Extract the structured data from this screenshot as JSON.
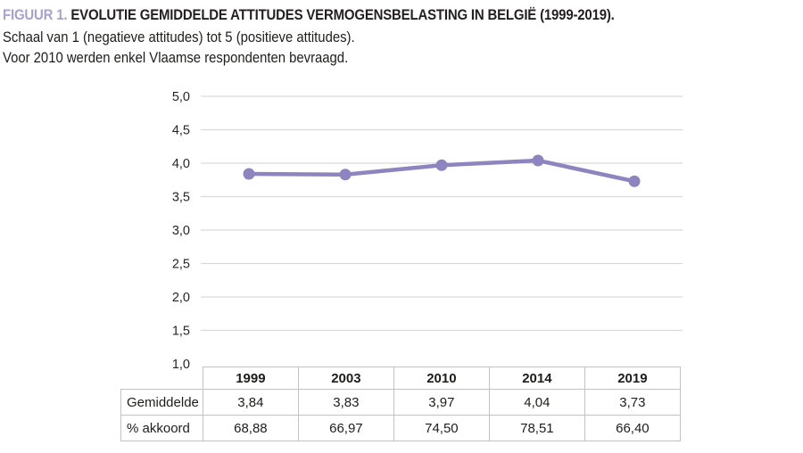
{
  "header": {
    "figure_label": "FIGUUR 1.",
    "title": " EVOLUTIE GEMIDDELDE ATTITUDES VERMOGENSBELASTING IN BELGIË (1999-2019).",
    "subtitle1": "Schaal van 1 (negatieve attitudes) tot 5 (positieve attitudes).",
    "subtitle2": "Voor 2010 werden enkel Vlaamse respondenten bevraagd."
  },
  "chart_data": {
    "type": "line",
    "categories": [
      "1999",
      "2003",
      "2010",
      "2014",
      "2019"
    ],
    "series": [
      {
        "name": "Gemiddelde",
        "values": [
          3.84,
          3.83,
          3.97,
          4.04,
          3.73
        ]
      }
    ],
    "ylim": [
      1.0,
      5.0
    ],
    "ytick_step": 0.5,
    "ytick_labels": [
      "5,0",
      "4,5",
      "4,0",
      "3,5",
      "3,0",
      "2,5",
      "2,0",
      "1,5",
      "1,0"
    ],
    "grid": true,
    "legend": "none",
    "line_color": "#8d84c0",
    "marker_color": "#8d84c0",
    "gridline_color": "#d9d9d9",
    "axis_label_color": "#262626"
  },
  "table": {
    "col_headers": [
      "1999",
      "2003",
      "2010",
      "2014",
      "2019"
    ],
    "rows": [
      {
        "label": "Gemiddelde",
        "values": [
          "3,84",
          "3,83",
          "3,97",
          "4,04",
          "3,73"
        ]
      },
      {
        "label": "% akkoord",
        "values": [
          "68,88",
          "66,97",
          "74,50",
          "78,51",
          "66,40"
        ]
      }
    ]
  }
}
